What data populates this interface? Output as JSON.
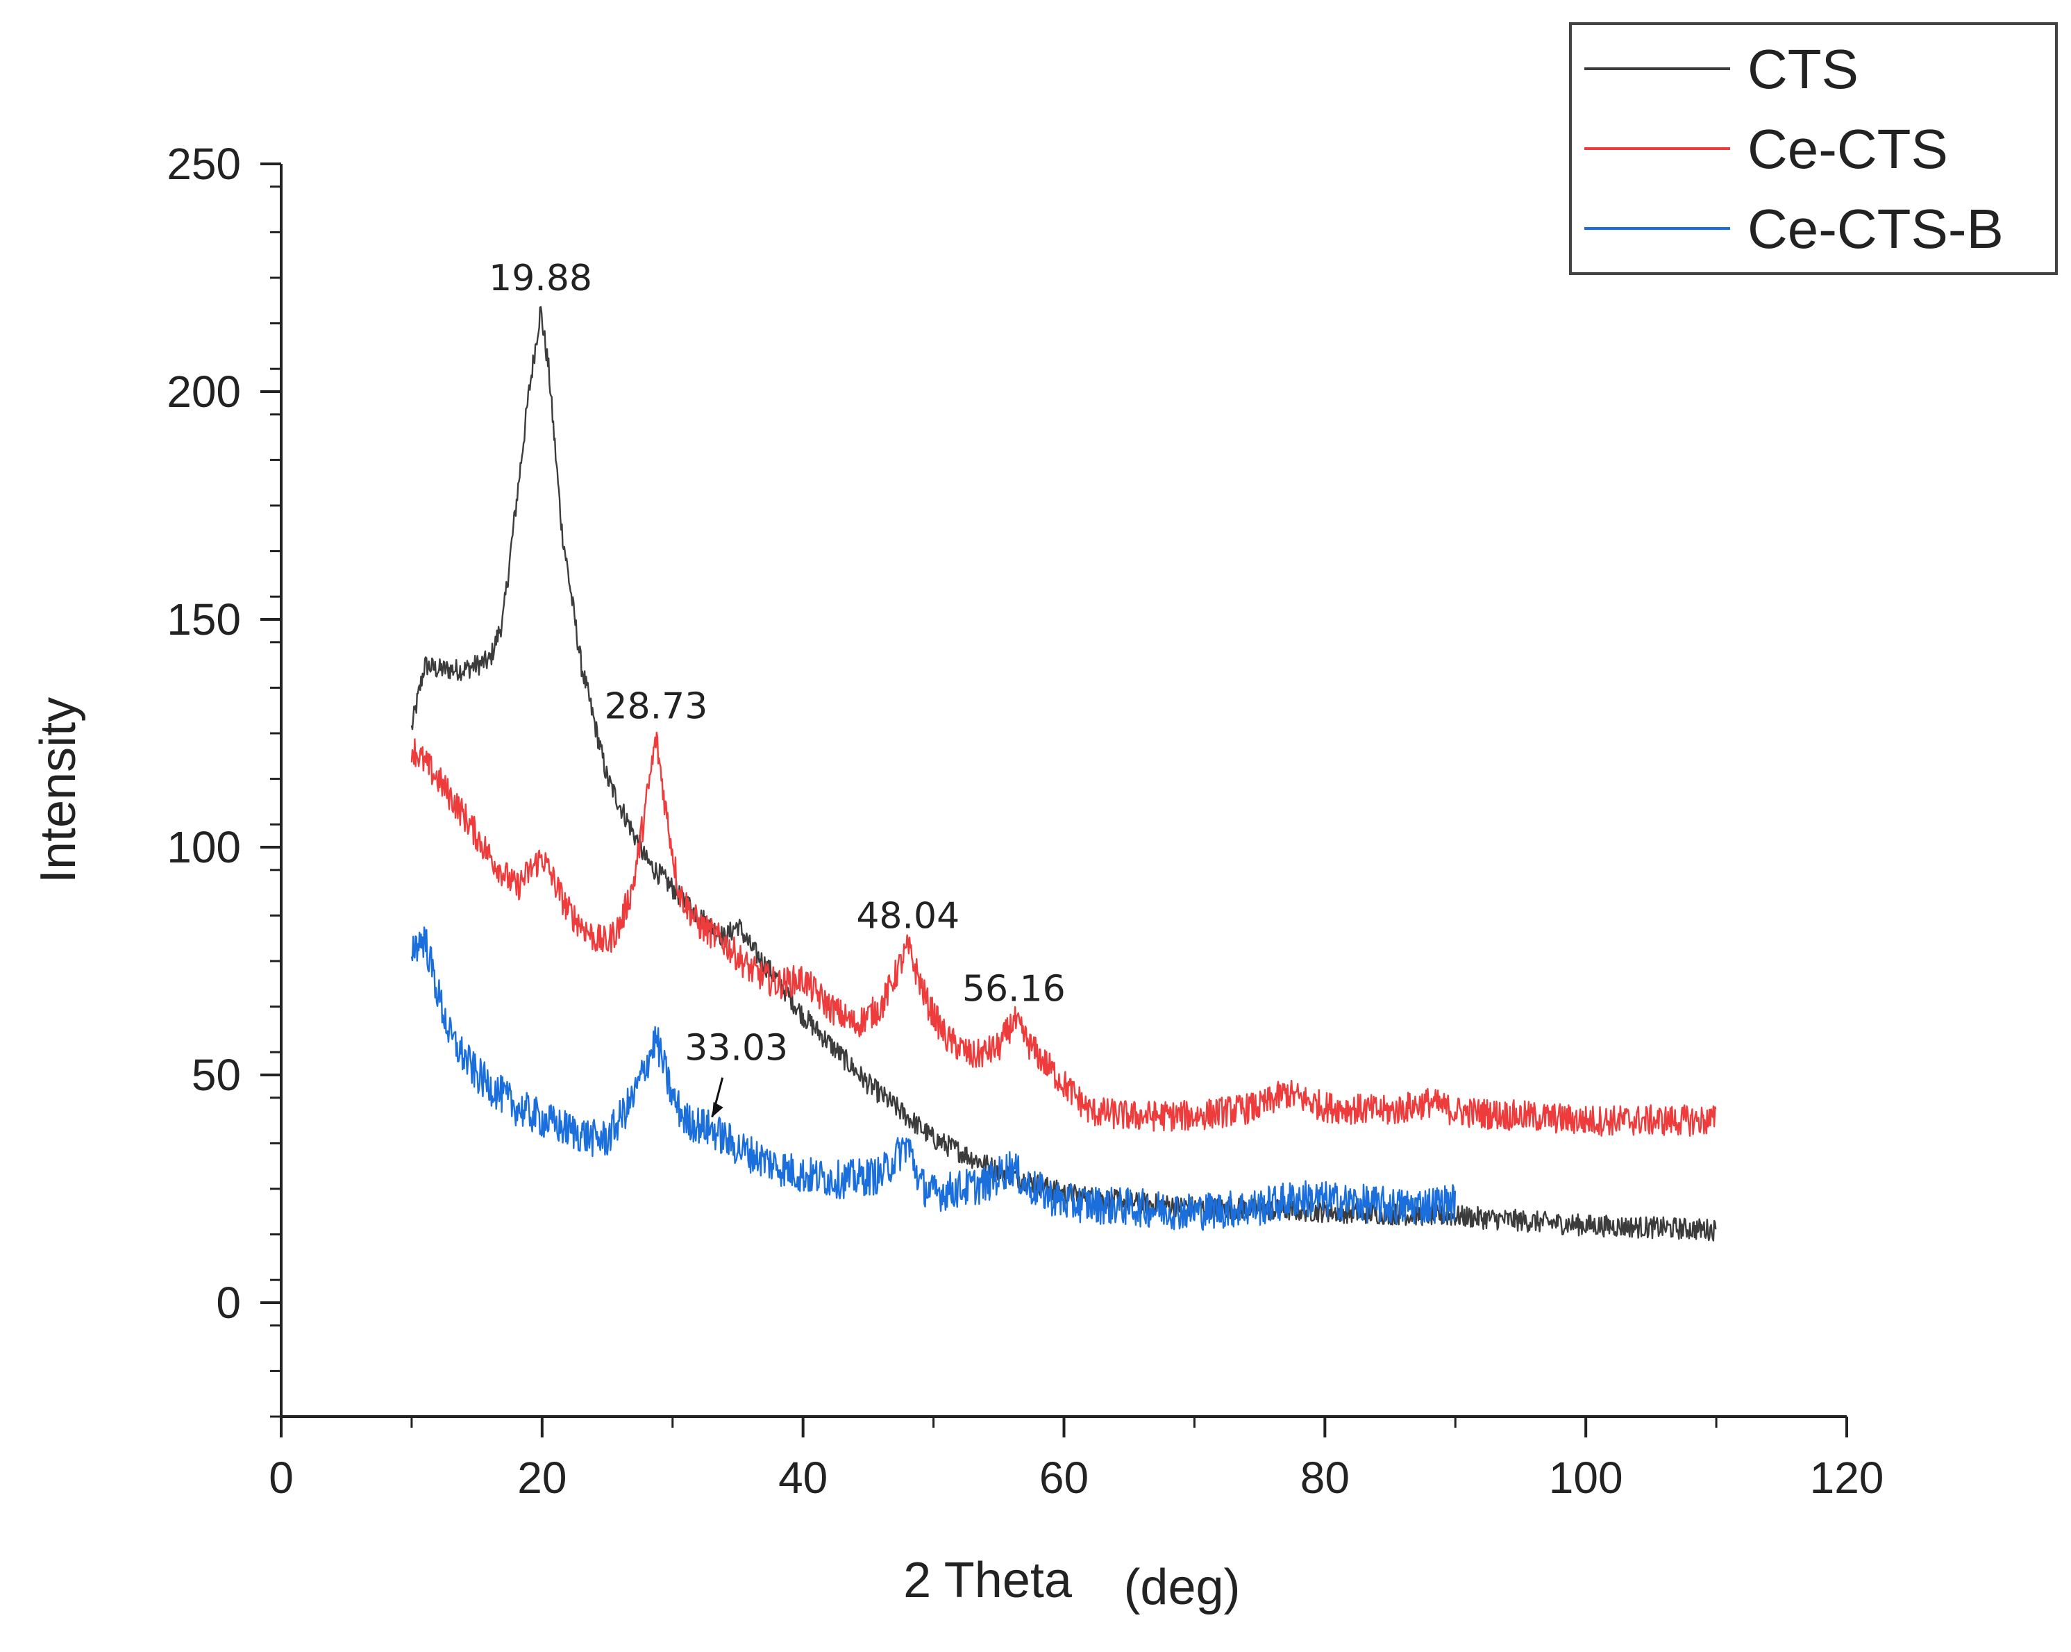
{
  "chart_data": {
    "type": "line",
    "title": "",
    "xlabel": "2 Theta",
    "xlabel_unit": "(deg)",
    "ylabel": "Intensity",
    "xlim": [
      0,
      120
    ],
    "ylim": [
      -25,
      250
    ],
    "x_ticks": [
      0,
      20,
      40,
      60,
      80,
      100,
      120
    ],
    "y_ticks": [
      0,
      50,
      100,
      150,
      200,
      250
    ],
    "grid": false,
    "legend_position": "top-right",
    "colors": {
      "CTS": "#3c3c3c",
      "Ce-CTS": "#ee3b3b",
      "Ce-CTS-B": "#1a6fdc",
      "axis": "#222222"
    },
    "series": [
      {
        "name": "CTS",
        "x": [
          10,
          11,
          12,
          14,
          16,
          17,
          18,
          19,
          19.88,
          20.5,
          21.5,
          23,
          25,
          28,
          32,
          34,
          35,
          36,
          38,
          40,
          45,
          50,
          55,
          60,
          65,
          70,
          80,
          90,
          100,
          110
        ],
        "y": [
          126,
          140,
          139,
          139,
          141,
          150,
          175,
          200,
          218,
          205,
          170,
          140,
          115,
          97,
          85,
          80,
          83,
          78,
          71,
          63,
          48,
          36,
          29,
          24,
          22,
          21,
          20,
          19,
          17,
          16
        ]
      },
      {
        "name": "Ce-CTS",
        "x": [
          10,
          12,
          14,
          16,
          18,
          20,
          22,
          24,
          25,
          26,
          27,
          28,
          28.73,
          29.5,
          30.5,
          32,
          34,
          36,
          38,
          40,
          42,
          44,
          46,
          48.04,
          49.5,
          51,
          53,
          55,
          56.16,
          57.5,
          60,
          62,
          65,
          70,
          75,
          77,
          80,
          85,
          88,
          90,
          95,
          100,
          105,
          110
        ],
        "y": [
          122,
          115,
          107,
          98,
          91,
          98,
          86,
          80,
          79,
          83,
          92,
          110,
          124,
          108,
          90,
          83,
          79,
          73,
          70,
          71,
          65,
          61,
          65,
          78,
          66,
          58,
          54,
          56,
          62,
          56,
          48,
          42,
          41,
          41,
          43,
          46,
          43,
          42,
          44,
          42,
          41,
          40,
          40,
          40
        ]
      },
      {
        "name": "Ce-CTS-B",
        "x": [
          10,
          11,
          12,
          13,
          15,
          18,
          21,
          24,
          25,
          27,
          28.73,
          30,
          31,
          33.03,
          35,
          38,
          40,
          43,
          46,
          48,
          49,
          50,
          52,
          54,
          56,
          57,
          60,
          65,
          70,
          75,
          78,
          82,
          86,
          90
        ],
        "y": [
          78,
          80,
          68,
          58,
          50,
          43,
          39,
          36,
          36,
          45,
          58,
          45,
          40,
          38,
          34,
          30,
          28,
          27,
          28,
          35,
          26,
          24,
          25,
          26,
          30,
          26,
          22,
          21,
          20,
          21,
          23,
          22,
          21,
          22
        ]
      }
    ],
    "annotations": [
      {
        "text": "19.88",
        "x": 19.88,
        "y": 218,
        "series": "CTS"
      },
      {
        "text": "28.73",
        "x": 28.73,
        "y": 124,
        "series": "Ce-CTS"
      },
      {
        "text": "48.04",
        "x": 48.04,
        "y": 78,
        "series": "Ce-CTS"
      },
      {
        "text": "56.16",
        "x": 56.16,
        "y": 62,
        "series": "Ce-CTS"
      },
      {
        "text": "33.03",
        "x": 33.03,
        "y": 38,
        "series": "Ce-CTS-B",
        "arrow": true
      }
    ]
  }
}
